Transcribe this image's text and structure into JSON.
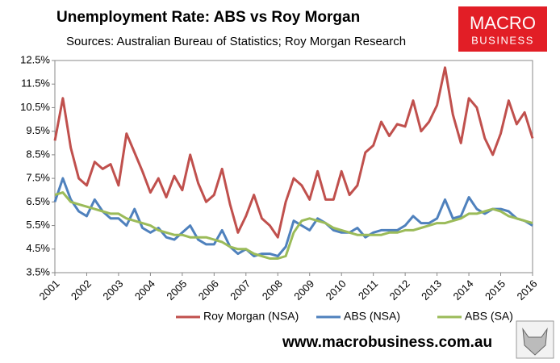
{
  "chart_data": {
    "type": "line",
    "title": "Unemployment Rate: ABS vs Roy Morgan",
    "subtitle": "Sources: Australian Bureau of Statistics; Roy Morgan Research",
    "x": [
      2001,
      2001.25,
      2001.5,
      2001.75,
      2002,
      2002.25,
      2002.5,
      2002.75,
      2003,
      2003.25,
      2003.5,
      2003.75,
      2004,
      2004.25,
      2004.5,
      2004.75,
      2005,
      2005.25,
      2005.5,
      2005.75,
      2006,
      2006.25,
      2006.5,
      2006.75,
      2007,
      2007.25,
      2007.5,
      2007.75,
      2008,
      2008.25,
      2008.5,
      2008.75,
      2009,
      2009.25,
      2009.5,
      2009.75,
      2010,
      2010.25,
      2010.5,
      2010.75,
      2011,
      2011.25,
      2011.5,
      2011.75,
      2012,
      2012.25,
      2012.5,
      2012.75,
      2013,
      2013.25,
      2013.5,
      2013.75,
      2014,
      2014.25,
      2014.5,
      2014.75,
      2015,
      2015.25,
      2015.5,
      2015.75,
      2016
    ],
    "series": [
      {
        "name": "Roy Morgan (NSA)",
        "color": "#c0504d",
        "values": [
          9.1,
          10.9,
          8.8,
          7.5,
          7.2,
          8.2,
          7.9,
          8.1,
          7.2,
          9.4,
          8.6,
          7.8,
          6.9,
          7.5,
          6.7,
          7.6,
          7.0,
          8.5,
          7.3,
          6.5,
          6.8,
          7.9,
          6.4,
          5.2,
          5.9,
          6.8,
          5.8,
          5.5,
          5.0,
          6.5,
          7.5,
          7.2,
          6.6,
          7.8,
          6.6,
          6.6,
          7.8,
          6.8,
          7.2,
          8.6,
          8.9,
          9.9,
          9.3,
          9.8,
          9.7,
          10.8,
          9.5,
          9.9,
          10.6,
          12.2,
          10.2,
          9.0,
          10.9,
          10.5,
          9.2,
          8.5,
          9.4,
          10.8,
          9.8,
          10.3,
          9.2
        ]
      },
      {
        "name": "ABS (NSA)",
        "color": "#4f81bd",
        "values": [
          6.5,
          7.5,
          6.6,
          6.1,
          5.9,
          6.6,
          6.1,
          5.8,
          5.8,
          5.5,
          6.2,
          5.4,
          5.2,
          5.4,
          5.0,
          4.9,
          5.2,
          5.5,
          4.9,
          4.7,
          4.7,
          5.3,
          4.6,
          4.3,
          4.5,
          4.2,
          4.3,
          4.3,
          4.2,
          4.6,
          5.7,
          5.5,
          5.3,
          5.8,
          5.6,
          5.3,
          5.2,
          5.2,
          5.4,
          5.0,
          5.2,
          5.3,
          5.3,
          5.3,
          5.5,
          5.9,
          5.6,
          5.6,
          5.8,
          6.6,
          5.8,
          5.9,
          6.7,
          6.2,
          6.0,
          6.2,
          6.2,
          6.1,
          5.8,
          5.7,
          5.5
        ]
      },
      {
        "name": "ABS (SA)",
        "color": "#9bbb59",
        "values": [
          6.8,
          6.9,
          6.5,
          6.4,
          6.3,
          6.2,
          6.1,
          6.0,
          6.0,
          5.8,
          5.7,
          5.6,
          5.5,
          5.3,
          5.2,
          5.1,
          5.1,
          5.0,
          5.0,
          5.0,
          4.9,
          4.8,
          4.6,
          4.5,
          4.5,
          4.3,
          4.2,
          4.1,
          4.1,
          4.2,
          5.2,
          5.7,
          5.8,
          5.7,
          5.6,
          5.4,
          5.3,
          5.2,
          5.1,
          5.1,
          5.1,
          5.1,
          5.2,
          5.2,
          5.3,
          5.3,
          5.4,
          5.5,
          5.6,
          5.6,
          5.7,
          5.8,
          6.0,
          6.0,
          6.1,
          6.2,
          6.1,
          5.9,
          5.8,
          5.7,
          5.6
        ]
      }
    ],
    "xlim": [
      2001,
      2016
    ],
    "xticks": [
      2001,
      2002,
      2003,
      2004,
      2005,
      2006,
      2007,
      2008,
      2009,
      2010,
      2011,
      2012,
      2013,
      2014,
      2015,
      2016
    ],
    "ylim": [
      3.5,
      12.5
    ],
    "yticks": [
      {
        "value": 3.5,
        "label": "3.5%"
      },
      {
        "value": 4.5,
        "label": "4.5%"
      },
      {
        "value": 5.5,
        "label": "5.5%"
      },
      {
        "value": 6.5,
        "label": "6.5%"
      },
      {
        "value": 7.5,
        "label": "7.5%"
      },
      {
        "value": 8.5,
        "label": "8.5%"
      },
      {
        "value": 9.5,
        "label": "9.5%"
      },
      {
        "value": 10.5,
        "label": "10.5%"
      },
      {
        "value": 11.5,
        "label": "11.5%"
      },
      {
        "value": 12.5,
        "label": "12.5%"
      }
    ],
    "grid": false,
    "legend": "bottom"
  },
  "logo": {
    "line1": "MACRO",
    "line2": "BUSINESS"
  },
  "footer": {
    "website": "www.macrobusiness.com.au"
  }
}
